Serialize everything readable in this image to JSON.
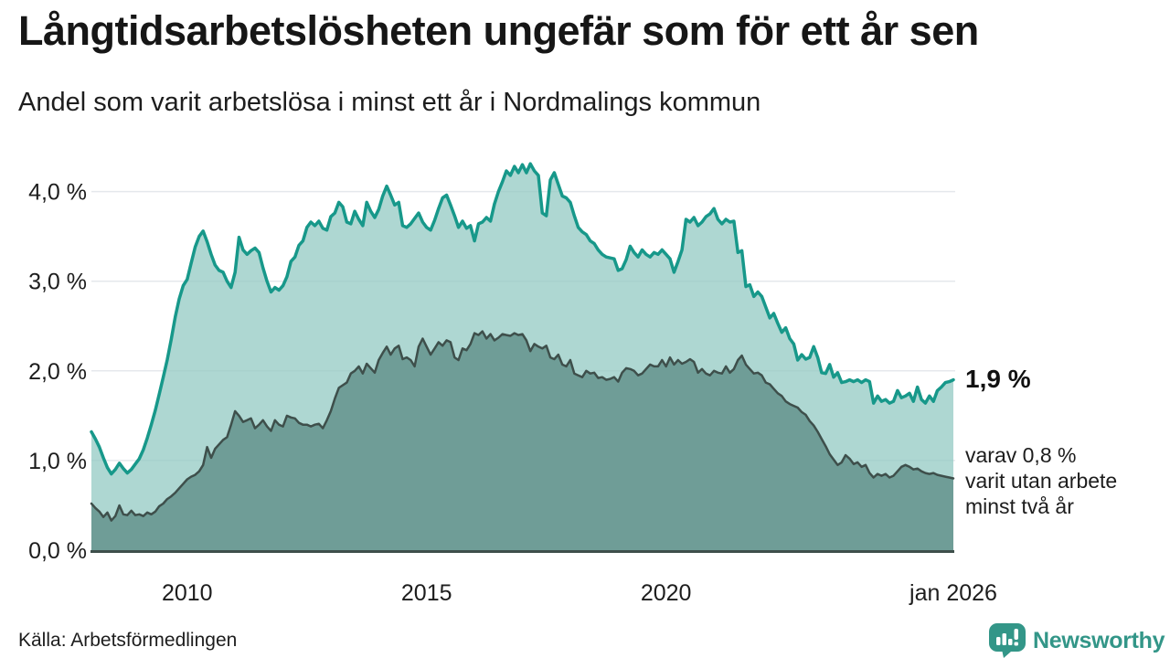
{
  "header": {
    "title": "Långtidsarbetslösheten ungefär som för ett år sen",
    "subtitle": "Andel som varit arbetslösa i minst ett år i Nordmalings kommun"
  },
  "annotations": {
    "latest_value": "1,9 %",
    "note_lines": [
      "varav 0,8 %",
      "varit utan arbete",
      "minst två år"
    ]
  },
  "footer": {
    "source": "Källa: Arbetsförmedlingen",
    "brand": "Newsworthy",
    "brand_icon": "newsworthy-bars-icon"
  },
  "colors": {
    "line_1yr": "#17988a",
    "fill_1yr": "#93cac3",
    "line_2yr": "#3e4f4b",
    "fill_2yr": "#6f9d97",
    "gridline": "#e5e8ec",
    "axis_baseline": "#3e4f4b",
    "text": "#1d1d1d",
    "brand_teal": "#339688"
  },
  "chart_data": {
    "type": "area",
    "title": "Långtidsarbetslösheten ungefär som för ett år sen",
    "subtitle": "Andel som varit arbetslösa i minst ett år i Nordmalings kommun",
    "unit": "%",
    "x_start_year": 2008,
    "x_months_per_point": 1,
    "ylim": [
      0,
      4.45
    ],
    "grid": true,
    "y_tick_values": [
      0,
      1,
      2,
      3,
      4
    ],
    "y_tick_labels": [
      "0,0 %",
      "1,0 %",
      "2,0 %",
      "3,0 %",
      "4,0 %"
    ],
    "x_ticks": [
      {
        "label": "2010",
        "year": 2010
      },
      {
        "label": "2015",
        "year": 2015
      },
      {
        "label": "2020",
        "year": 2020
      },
      {
        "label": "jan 2026",
        "year": 2026
      }
    ],
    "series": [
      {
        "name": "Arbetslösa minst ett år",
        "latest_label": "1,9 %",
        "color": "#17988a",
        "fill": "#93cac3",
        "values": [
          1.32,
          1.24,
          1.15,
          1.03,
          0.92,
          0.85,
          0.9,
          0.97,
          0.91,
          0.86,
          0.9,
          0.96,
          1.02,
          1.12,
          1.25,
          1.4,
          1.56,
          1.74,
          1.93,
          2.12,
          2.35,
          2.6,
          2.8,
          2.95,
          3.02,
          3.2,
          3.38,
          3.5,
          3.56,
          3.44,
          3.3,
          3.18,
          3.12,
          3.1,
          3.0,
          2.93,
          3.1,
          3.49,
          3.35,
          3.3,
          3.34,
          3.37,
          3.32,
          3.15,
          3.0,
          2.88,
          2.93,
          2.9,
          2.95,
          3.05,
          3.22,
          3.27,
          3.4,
          3.45,
          3.6,
          3.66,
          3.62,
          3.67,
          3.59,
          3.57,
          3.72,
          3.76,
          3.88,
          3.83,
          3.66,
          3.64,
          3.78,
          3.69,
          3.62,
          3.88,
          3.78,
          3.71,
          3.8,
          3.95,
          4.06,
          3.96,
          3.85,
          3.88,
          3.62,
          3.6,
          3.64,
          3.7,
          3.76,
          3.66,
          3.6,
          3.57,
          3.68,
          3.81,
          3.93,
          3.96,
          3.85,
          3.73,
          3.6,
          3.67,
          3.59,
          3.62,
          3.45,
          3.64,
          3.66,
          3.71,
          3.67,
          3.86,
          4.0,
          4.11,
          4.23,
          4.18,
          4.28,
          4.21,
          4.3,
          4.21,
          4.31,
          4.23,
          4.18,
          3.76,
          3.73,
          4.13,
          4.21,
          4.08,
          3.95,
          3.93,
          3.88,
          3.73,
          3.6,
          3.55,
          3.52,
          3.45,
          3.42,
          3.35,
          3.3,
          3.27,
          3.26,
          3.25,
          3.12,
          3.14,
          3.24,
          3.39,
          3.32,
          3.27,
          3.35,
          3.3,
          3.27,
          3.32,
          3.3,
          3.35,
          3.3,
          3.25,
          3.1,
          3.22,
          3.35,
          3.69,
          3.66,
          3.71,
          3.62,
          3.66,
          3.72,
          3.75,
          3.81,
          3.69,
          3.64,
          3.69,
          3.66,
          3.67,
          3.32,
          3.34,
          2.94,
          2.96,
          2.83,
          2.88,
          2.83,
          2.71,
          2.59,
          2.64,
          2.53,
          2.43,
          2.48,
          2.36,
          2.3,
          2.12,
          2.18,
          2.13,
          2.15,
          2.27,
          2.15,
          1.98,
          1.97,
          2.07,
          1.93,
          1.98,
          1.87,
          1.88,
          1.9,
          1.88,
          1.9,
          1.87,
          1.9,
          1.88,
          1.64,
          1.72,
          1.66,
          1.68,
          1.64,
          1.66,
          1.78,
          1.7,
          1.72,
          1.75,
          1.66,
          1.82,
          1.68,
          1.64,
          1.72,
          1.66,
          1.78,
          1.82,
          1.87,
          1.88,
          1.9
        ]
      },
      {
        "name": "varav arbetslösa minst två år",
        "latest_label": "0,8 %",
        "color": "#3e4f4b",
        "fill": "#6f9d97",
        "values": [
          0.52,
          0.47,
          0.43,
          0.37,
          0.42,
          0.33,
          0.38,
          0.5,
          0.4,
          0.39,
          0.44,
          0.39,
          0.4,
          0.38,
          0.42,
          0.4,
          0.43,
          0.49,
          0.52,
          0.57,
          0.6,
          0.64,
          0.69,
          0.74,
          0.79,
          0.82,
          0.84,
          0.88,
          0.95,
          1.15,
          1.03,
          1.13,
          1.18,
          1.23,
          1.26,
          1.4,
          1.55,
          1.5,
          1.43,
          1.45,
          1.47,
          1.36,
          1.4,
          1.45,
          1.38,
          1.33,
          1.45,
          1.4,
          1.38,
          1.5,
          1.48,
          1.47,
          1.42,
          1.4,
          1.4,
          1.38,
          1.4,
          1.41,
          1.36,
          1.45,
          1.55,
          1.69,
          1.81,
          1.84,
          1.87,
          1.97,
          2.0,
          2.05,
          1.97,
          2.08,
          2.03,
          1.98,
          2.12,
          2.2,
          2.27,
          2.18,
          2.25,
          2.28,
          2.13,
          2.15,
          2.12,
          2.05,
          2.27,
          2.36,
          2.27,
          2.18,
          2.25,
          2.32,
          2.28,
          2.34,
          2.32,
          2.15,
          2.12,
          2.25,
          2.23,
          2.3,
          2.42,
          2.4,
          2.44,
          2.36,
          2.41,
          2.34,
          2.37,
          2.41,
          2.4,
          2.39,
          2.42,
          2.4,
          2.41,
          2.34,
          2.22,
          2.3,
          2.27,
          2.25,
          2.28,
          2.15,
          2.13,
          2.18,
          2.07,
          2.05,
          2.12,
          1.97,
          1.95,
          1.93,
          2.0,
          1.97,
          1.98,
          1.92,
          1.93,
          1.9,
          1.91,
          1.93,
          1.88,
          1.98,
          2.03,
          2.02,
          2.0,
          1.95,
          1.97,
          2.02,
          2.07,
          2.05,
          2.05,
          2.12,
          2.05,
          2.15,
          2.07,
          2.12,
          2.08,
          2.1,
          2.13,
          2.1,
          1.98,
          2.02,
          1.97,
          1.95,
          2.0,
          1.98,
          1.97,
          2.05,
          1.98,
          2.02,
          2.12,
          2.17,
          2.07,
          2.02,
          1.97,
          1.98,
          1.95,
          1.87,
          1.85,
          1.8,
          1.75,
          1.72,
          1.66,
          1.63,
          1.61,
          1.59,
          1.54,
          1.51,
          1.44,
          1.39,
          1.32,
          1.24,
          1.16,
          1.07,
          1.01,
          0.95,
          0.98,
          1.06,
          1.02,
          0.96,
          0.98,
          0.93,
          0.95,
          0.86,
          0.81,
          0.85,
          0.83,
          0.85,
          0.81,
          0.83,
          0.88,
          0.93,
          0.95,
          0.93,
          0.9,
          0.91,
          0.88,
          0.86,
          0.85,
          0.86,
          0.84,
          0.83,
          0.82,
          0.81,
          0.8
        ]
      }
    ]
  }
}
